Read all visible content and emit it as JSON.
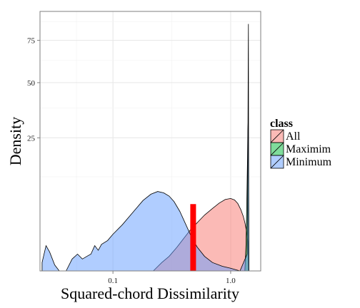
{
  "chart_data": {
    "type": "area",
    "subtype": "density",
    "xlabel": "Squared-chord Dissimilarity",
    "ylabel": "Density",
    "x_scale": "log10",
    "y_scale": "sqrt",
    "xlim": [
      0.024,
      1.8
    ],
    "ylim": [
      0,
      95
    ],
    "x_ticks": [
      0.1,
      1.0
    ],
    "x_tick_labels": [
      "0.1",
      "1.0"
    ],
    "y_ticks": [
      25,
      50,
      75
    ],
    "y_tick_labels": [
      "25",
      "50",
      "75"
    ],
    "grid": true,
    "legend": {
      "title": "class",
      "position": "right",
      "entries": [
        "All",
        "Maximim",
        "Minimum"
      ]
    },
    "series": [
      {
        "name": "All",
        "color": "#F8766D",
        "points": [
          [
            0.22,
            0.0
          ],
          [
            0.26,
            0.1
          ],
          [
            0.3,
            0.3
          ],
          [
            0.35,
            0.8
          ],
          [
            0.4,
            1.5
          ],
          [
            0.45,
            2.3
          ],
          [
            0.5,
            3.0
          ],
          [
            0.55,
            3.7
          ],
          [
            0.6,
            4.4
          ],
          [
            0.7,
            5.5
          ],
          [
            0.8,
            6.5
          ],
          [
            0.9,
            7.2
          ],
          [
            1.0,
            7.4
          ],
          [
            1.08,
            7.1
          ],
          [
            1.15,
            6.4
          ],
          [
            1.22,
            5.3
          ],
          [
            1.28,
            4.2
          ],
          [
            1.32,
            3.3
          ],
          [
            1.36,
            2.3
          ],
          [
            1.4,
            1.2
          ],
          [
            1.42,
            0.0
          ]
        ]
      },
      {
        "name": "Maximim",
        "color": "#00BA38",
        "points": [
          [
            1.32,
            0.0
          ],
          [
            1.35,
            1.0
          ],
          [
            1.37,
            6.0
          ],
          [
            1.39,
            18.0
          ],
          [
            1.4,
            28.0
          ],
          [
            1.41,
            32.0
          ],
          [
            1.415,
            16.0
          ],
          [
            1.42,
            0.0
          ]
        ]
      },
      {
        "name": "Minimum",
        "color": "#619CFF",
        "points": [
          [
            0.025,
            0.1
          ],
          [
            0.027,
            0.9
          ],
          [
            0.029,
            0.5
          ],
          [
            0.032,
            0.05
          ],
          [
            0.035,
            0.0
          ],
          [
            0.04,
            0.0
          ],
          [
            0.045,
            0.2
          ],
          [
            0.05,
            0.4
          ],
          [
            0.055,
            0.2
          ],
          [
            0.06,
            0.3
          ],
          [
            0.065,
            0.4
          ],
          [
            0.07,
            0.9
          ],
          [
            0.075,
            0.6
          ],
          [
            0.08,
            1.0
          ],
          [
            0.09,
            1.3
          ],
          [
            0.1,
            1.9
          ],
          [
            0.12,
            3.0
          ],
          [
            0.15,
            5.0
          ],
          [
            0.18,
            7.0
          ],
          [
            0.21,
            8.3
          ],
          [
            0.24,
            8.9
          ],
          [
            0.27,
            8.6
          ],
          [
            0.3,
            7.9
          ],
          [
            0.33,
            6.8
          ],
          [
            0.37,
            5.0
          ],
          [
            0.42,
            2.9
          ],
          [
            0.47,
            1.5
          ],
          [
            0.52,
            0.8
          ],
          [
            0.6,
            0.3
          ],
          [
            0.7,
            0.1
          ],
          [
            0.85,
            0.03
          ],
          [
            1.0,
            0.01
          ],
          [
            1.2,
            0.0
          ],
          [
            1.38,
            0.4
          ],
          [
            1.4,
            20.0
          ],
          [
            1.41,
            65.0
          ],
          [
            1.415,
            86.0
          ],
          [
            1.42,
            20.0
          ],
          [
            1.43,
            0.0
          ]
        ]
      }
    ],
    "annotations": [
      {
        "type": "bar",
        "x": 0.48,
        "y_bottom": 0,
        "y_top": 6.3,
        "color": "#FF0000"
      }
    ]
  }
}
